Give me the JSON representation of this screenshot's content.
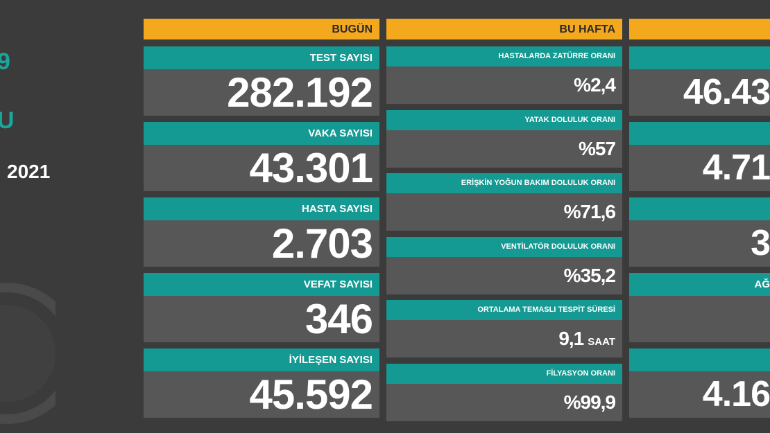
{
  "left_fragments": [
    "9",
    "U",
    "2021"
  ],
  "columns": [
    {
      "header": "BUGÜN",
      "cards": [
        {
          "label": "TEST SAYISI",
          "value": "282.192"
        },
        {
          "label": "VAKA SAYISI",
          "value": "43.301"
        },
        {
          "label": "HASTA SAYISI",
          "value": "2.703"
        },
        {
          "label": "VEFAT SAYISI",
          "value": "346"
        },
        {
          "label": "İYİLEŞEN SAYISI",
          "value": "45.592"
        }
      ]
    },
    {
      "header": "BU HAFTA",
      "cards": [
        {
          "label": "HASTALARDA ZATÜRRE ORANI",
          "value": "%2,4"
        },
        {
          "label": "YATAK DOLULUK ORANI",
          "value": "%57"
        },
        {
          "label": "ERİŞKİN YOĞUN BAKIM DOLULUK ORANI",
          "value": "%71,6"
        },
        {
          "label": "VENTİLATÖR DOLULUK ORANI",
          "value": "%35,2"
        },
        {
          "label": "ORTALAMA TEMASLI TESPİT SÜRESİ",
          "value": "9,1",
          "unit": "SAAT"
        },
        {
          "label": "FİLYASYON ORANI",
          "value": "%99,9"
        }
      ]
    },
    {
      "cards": [
        {
          "value": "46.43"
        },
        {
          "value": "4.71"
        },
        {
          "value": "3"
        },
        {
          "label": "AĞ"
        },
        {
          "value": "4.16"
        }
      ]
    }
  ]
}
